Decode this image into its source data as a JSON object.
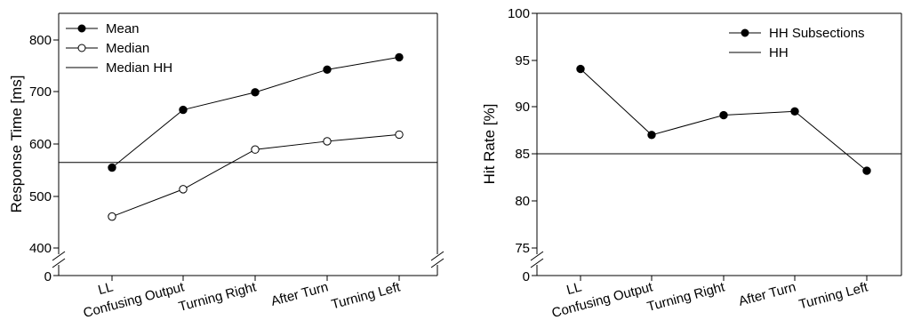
{
  "chart_data": [
    {
      "type": "line",
      "title": "",
      "xlabel": "",
      "ylabel": "Response Time [ms]",
      "categories": [
        "LL",
        "Confusing Output",
        "Turning Right",
        "After Turn",
        "Turning Left"
      ],
      "ylim": [
        380,
        840
      ],
      "axis_break": true,
      "ytick_labels": [
        "0",
        "400",
        "500",
        "600",
        "700",
        "800"
      ],
      "grid": false,
      "legend_position": "top-left",
      "series": [
        {
          "name": "Mean",
          "marker": "filled-circle",
          "values": [
            556,
            668,
            702,
            746,
            770
          ]
        },
        {
          "name": "Median",
          "marker": "open-circle",
          "values": [
            461,
            514,
            591,
            607,
            620
          ]
        }
      ],
      "reference_lines": [
        {
          "name": "Median HH",
          "value": 566
        }
      ]
    },
    {
      "type": "line",
      "title": "",
      "xlabel": "",
      "ylabel": "Hit Rate [%]",
      "categories": [
        "LL",
        "Confusing Output",
        "Turning Right",
        "After Turn",
        "Turning Left"
      ],
      "ylim": [
        73,
        100
      ],
      "axis_break": true,
      "ytick_labels": [
        "0",
        "75",
        "80",
        "85",
        "90",
        "95",
        "100"
      ],
      "grid": false,
      "legend_position": "top-right",
      "series": [
        {
          "name": "HH Subsections",
          "marker": "filled-circle",
          "values": [
            94.0,
            87.0,
            89.1,
            89.5,
            83.2
          ]
        }
      ],
      "reference_lines": [
        {
          "name": "HH",
          "value": 85
        }
      ]
    }
  ]
}
